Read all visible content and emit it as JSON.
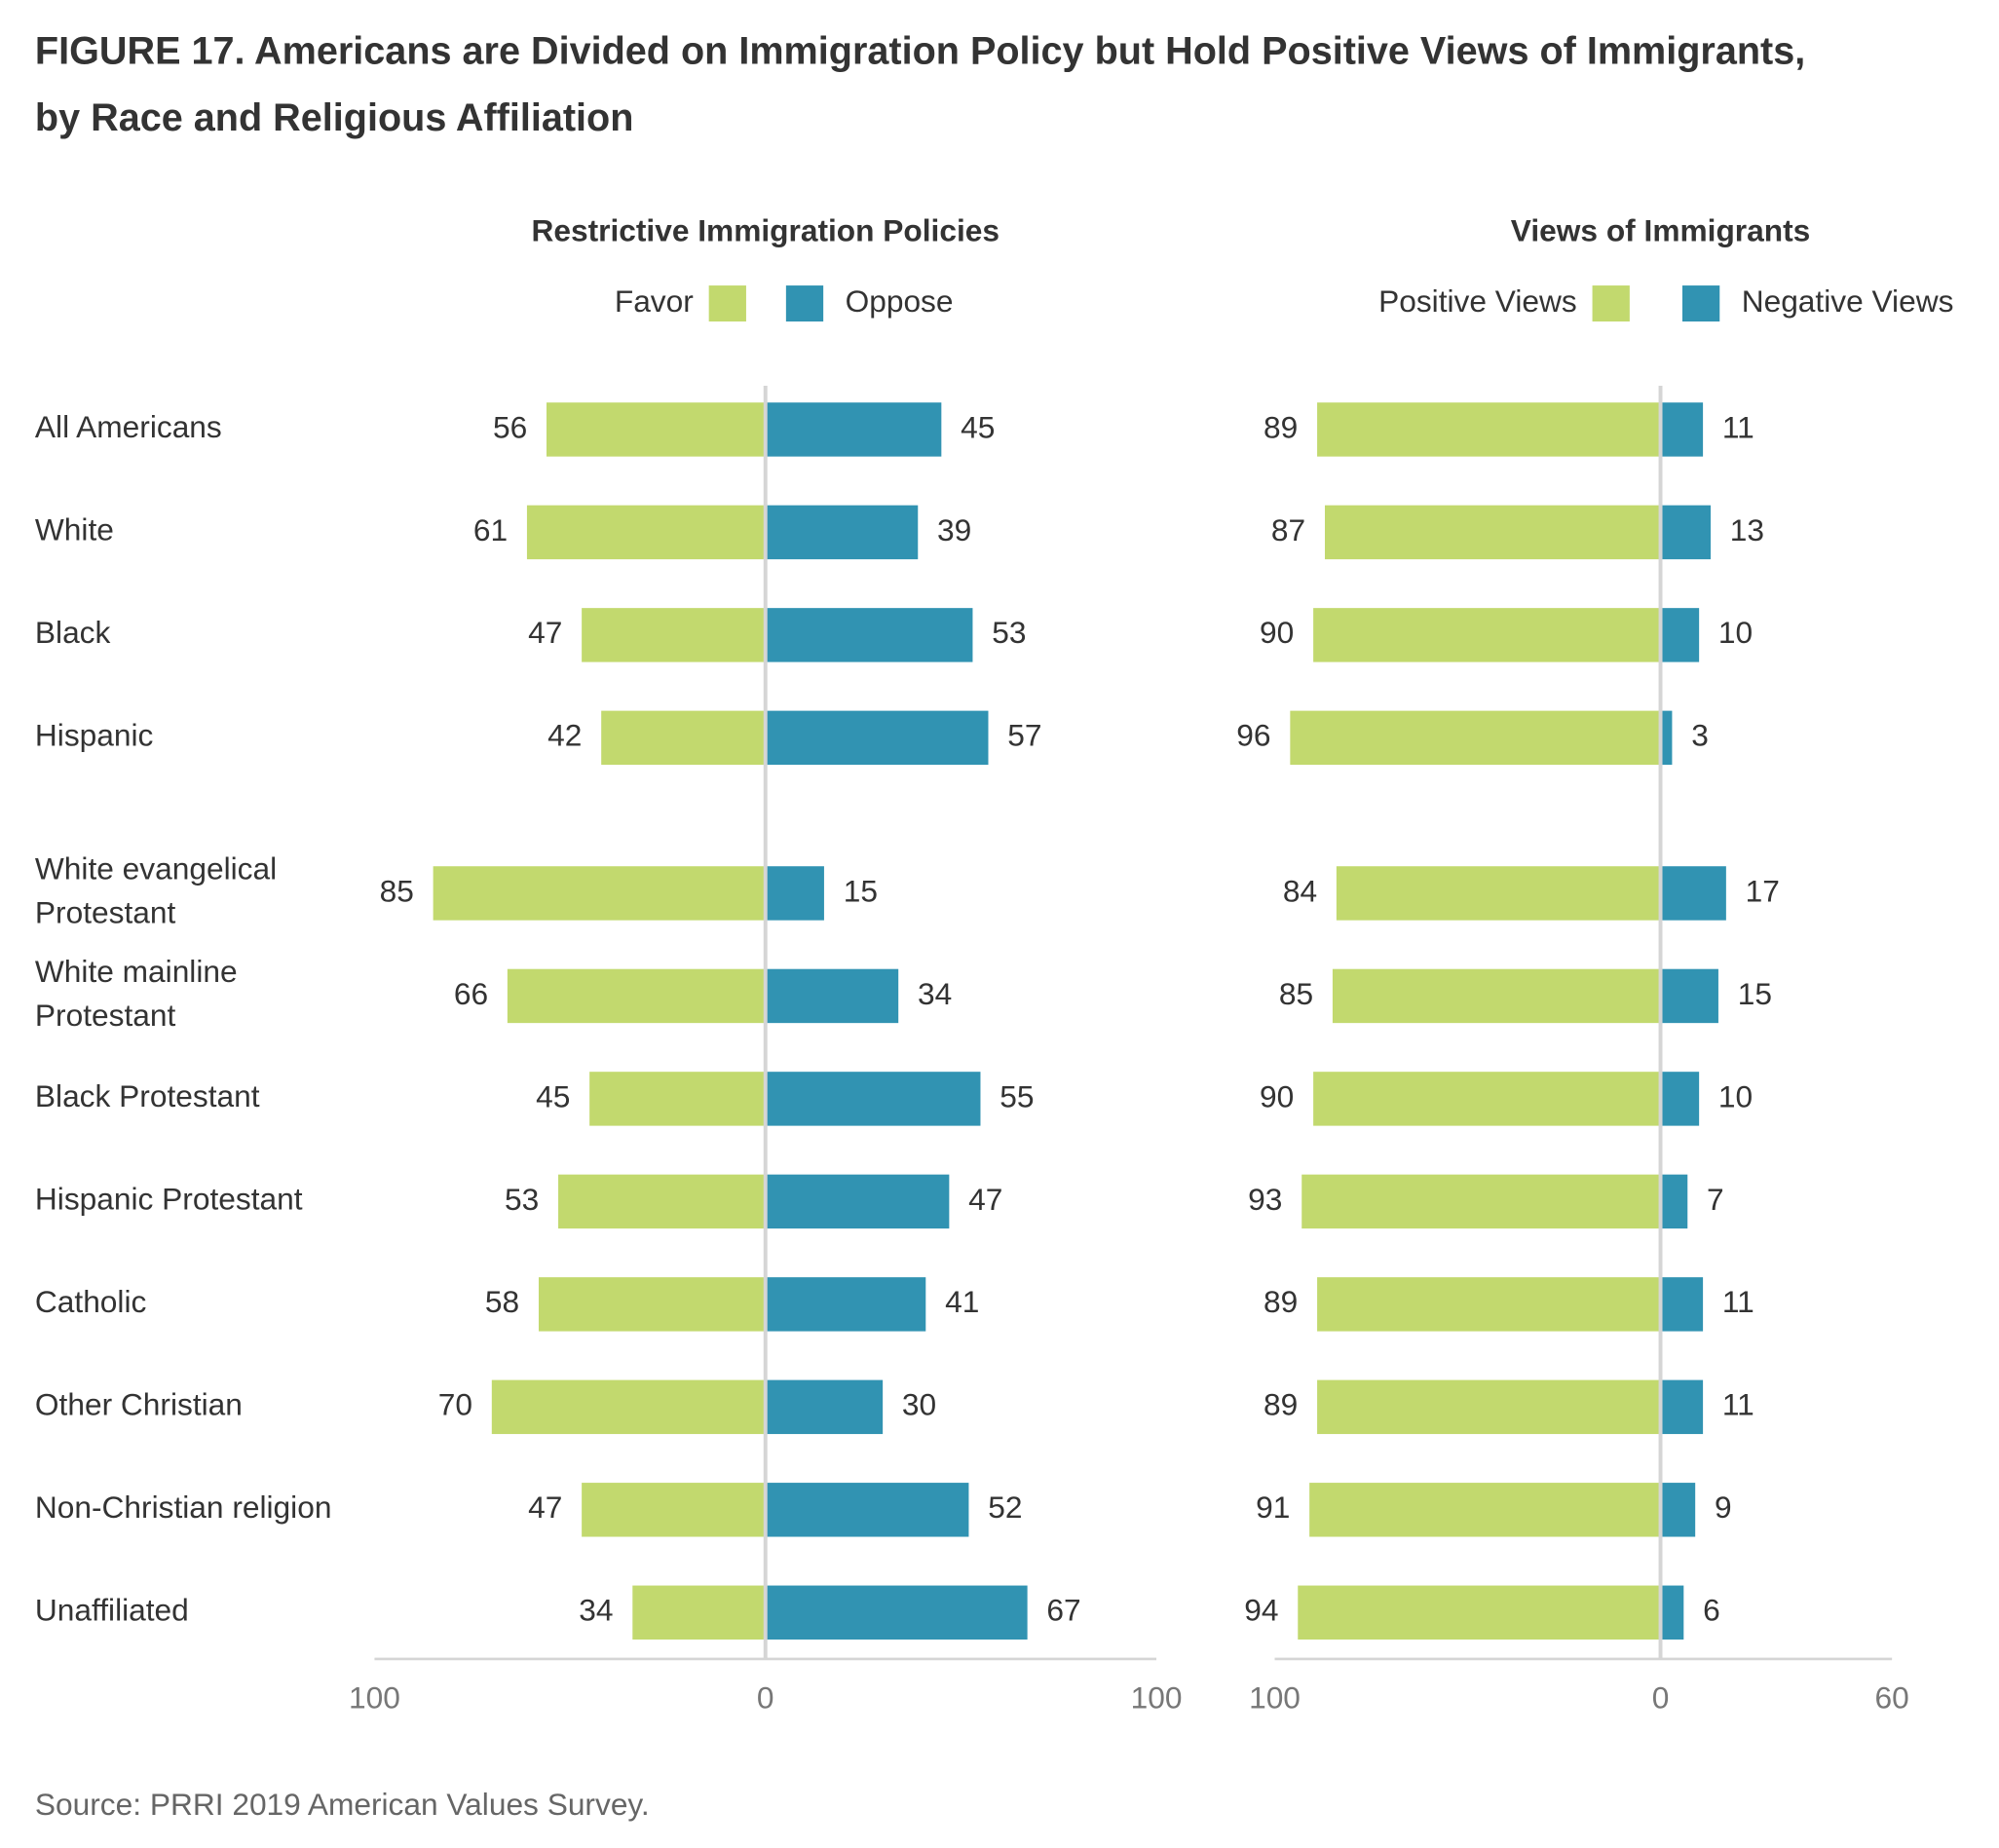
{
  "title": "FIGURE 17.  Americans are Divided on Immigration Policy but Hold Positive Views of Immigrants, by Race and Religious Affiliation",
  "source": "Source: PRRI 2019 American Values Survey.",
  "chart_data": [
    {
      "type": "diverging-bar",
      "title": "Restrictive Immigration Policies",
      "categories": [
        "All Americans",
        "White",
        "Black",
        "Hispanic",
        "White evangelical Protestant",
        "White mainline Protestant",
        "Black Protestant",
        "Hispanic Protestant",
        "Catholic",
        "Other Christian",
        "Non-Christian religion",
        "Unaffiliated"
      ],
      "series": [
        {
          "name": "Favor",
          "color": "#c2d96e",
          "values": [
            56,
            61,
            47,
            42,
            85,
            66,
            45,
            53,
            58,
            70,
            47,
            34
          ]
        },
        {
          "name": "Oppose",
          "color": "#3193b2",
          "values": [
            45,
            39,
            53,
            57,
            15,
            34,
            55,
            47,
            41,
            30,
            52,
            67
          ]
        }
      ],
      "xlim": [
        -100,
        100
      ],
      "xticks": [
        {
          "value": -100,
          "label": "100"
        },
        0,
        100
      ]
    },
    {
      "type": "diverging-bar",
      "title": "Views of Immigrants",
      "series": [
        {
          "name": "Positive Views",
          "color": "#c2d96e",
          "values": [
            89,
            87,
            90,
            96,
            84,
            85,
            90,
            93,
            89,
            89,
            91,
            94
          ]
        },
        {
          "name": "Negative Views",
          "color": "#3193b2",
          "values": [
            11,
            13,
            10,
            3,
            17,
            15,
            10,
            7,
            11,
            11,
            9,
            6
          ]
        }
      ],
      "xlim": [
        -100,
        60
      ],
      "xticks": [
        {
          "value": -100,
          "label": "100"
        },
        0,
        60
      ]
    }
  ]
}
